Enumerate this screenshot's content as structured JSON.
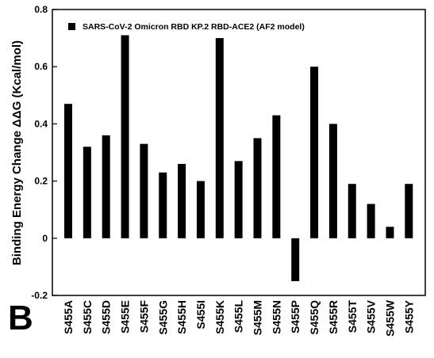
{
  "panel_label": "B",
  "chart_data": {
    "type": "bar",
    "ylabel": "Binding  Energy Change ΔΔG (Kcal/mol)",
    "xlabel": "",
    "ylim": [
      -0.2,
      0.8
    ],
    "yticks": [
      -0.2,
      0,
      0.2,
      0.4,
      0.6,
      0.8
    ],
    "ytick_labels": [
      "-0.2",
      "0",
      "0.2",
      "0.4",
      "0.6",
      "0.8"
    ],
    "grid": false,
    "legend_position": "top-left",
    "bar_color": "#000000",
    "categories": [
      "S455A",
      "S455C",
      "S455D",
      "S455E",
      "S455F",
      "S455G",
      "S455H",
      "S455I",
      "S455K",
      "S455L",
      "S455M",
      "S455N",
      "S455P",
      "S455Q",
      "S455R",
      "S455T",
      "S455V",
      "S455W",
      "S455Y"
    ],
    "series": [
      {
        "name": "SARS-CoV-2 Omicron RBD KP.2 RBD-ACE2 (AF2 model)",
        "values": [
          0.47,
          0.32,
          0.36,
          0.71,
          0.33,
          0.23,
          0.26,
          0.2,
          0.7,
          0.27,
          0.35,
          0.43,
          -0.15,
          0.6,
          0.4,
          0.19,
          0.12,
          0.04,
          0.19
        ]
      }
    ]
  }
}
